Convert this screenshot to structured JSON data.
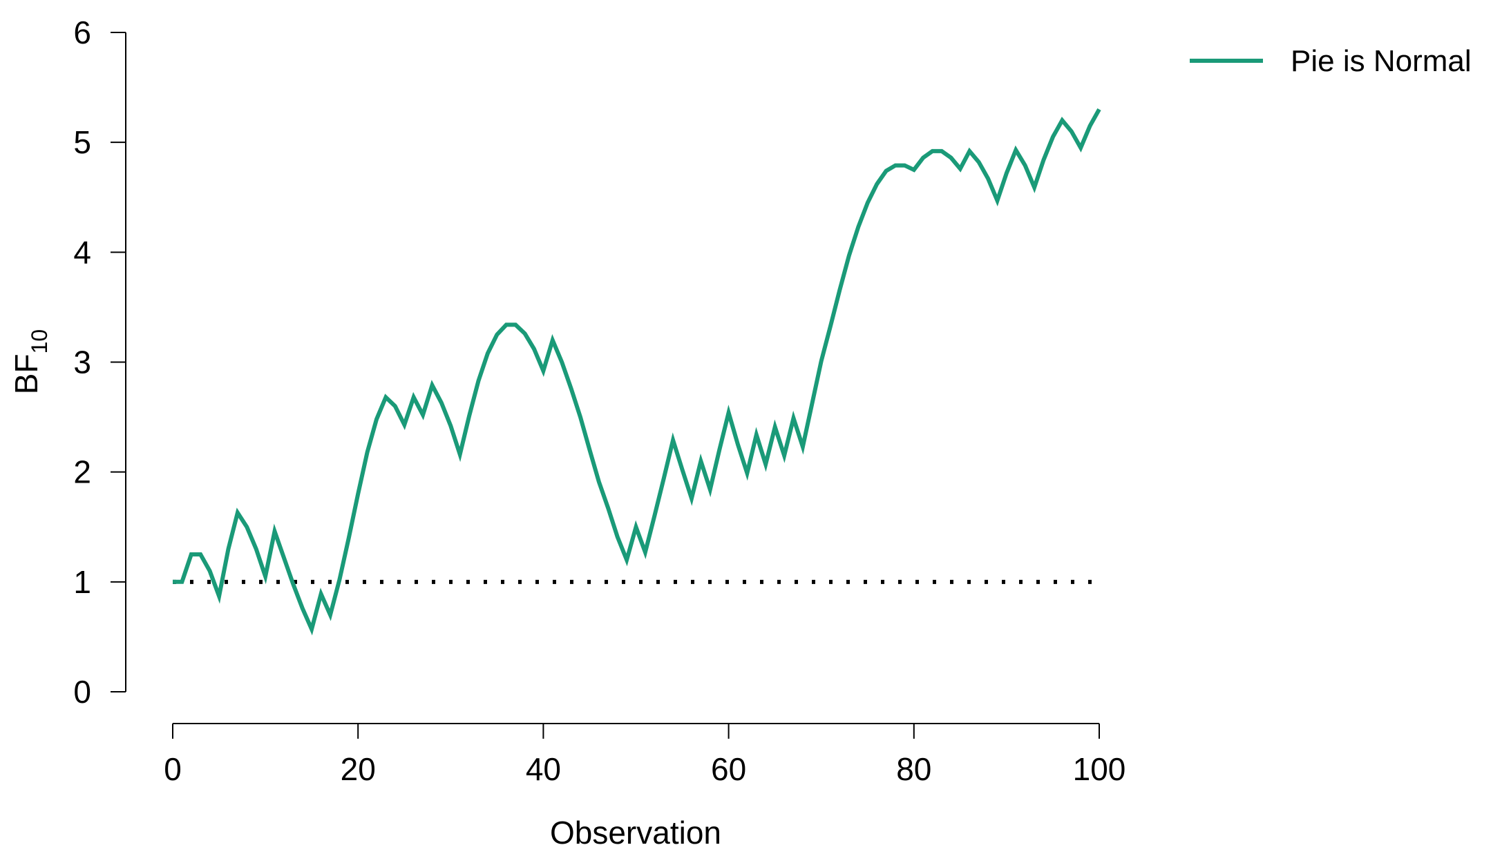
{
  "chart_data": {
    "type": "line",
    "xlabel": "Observation",
    "ylabel": "BF",
    "ylabel_subscript": "10",
    "xlim": [
      0,
      100
    ],
    "ylim": [
      0,
      6
    ],
    "x_ticks": [
      0,
      20,
      40,
      60,
      80,
      100
    ],
    "y_ticks": [
      0,
      1,
      2,
      3,
      4,
      5,
      6
    ],
    "grid": false,
    "legend_position": "top-right",
    "reference_line": {
      "y": 1,
      "style": "dotted",
      "color": "#000000"
    },
    "series": [
      {
        "name": "Pie is Normal",
        "color": "#1a9a78",
        "x": [
          0,
          1,
          2,
          3,
          4,
          5,
          6,
          7,
          8,
          9,
          10,
          11,
          12,
          13,
          14,
          15,
          16,
          17,
          18,
          19,
          20,
          21,
          22,
          23,
          24,
          25,
          26,
          27,
          28,
          29,
          30,
          31,
          32,
          33,
          34,
          35,
          36,
          37,
          38,
          39,
          40,
          41,
          42,
          43,
          44,
          45,
          46,
          47,
          48,
          49,
          50,
          51,
          52,
          53,
          54,
          55,
          56,
          57,
          58,
          59,
          60,
          61,
          62,
          63,
          64,
          65,
          66,
          67,
          68,
          69,
          70,
          71,
          72,
          73,
          74,
          75,
          76,
          77,
          78,
          79,
          80,
          81,
          82,
          83,
          84,
          85,
          86,
          87,
          88,
          89,
          90,
          91,
          92,
          93,
          94,
          95,
          96,
          97,
          98,
          99,
          100
        ],
        "values": [
          1.0,
          1.0,
          1.25,
          1.25,
          1.1,
          0.87,
          1.3,
          1.63,
          1.5,
          1.3,
          1.05,
          1.46,
          1.22,
          0.98,
          0.76,
          0.57,
          0.89,
          0.7,
          1.02,
          1.4,
          1.8,
          2.18,
          2.48,
          2.68,
          2.6,
          2.43,
          2.68,
          2.52,
          2.79,
          2.63,
          2.42,
          2.16,
          2.51,
          2.83,
          3.08,
          3.25,
          3.34,
          3.34,
          3.26,
          3.12,
          2.92,
          3.2,
          3.0,
          2.76,
          2.5,
          2.2,
          1.91,
          1.67,
          1.41,
          1.2,
          1.5,
          1.27,
          1.6,
          1.94,
          2.29,
          2.02,
          1.76,
          2.1,
          1.84,
          2.2,
          2.54,
          2.25,
          1.99,
          2.34,
          2.07,
          2.41,
          2.15,
          2.49,
          2.23,
          2.62,
          3.01,
          3.33,
          3.66,
          3.97,
          4.23,
          4.45,
          4.62,
          4.74,
          4.79,
          4.79,
          4.75,
          4.86,
          4.92,
          4.92,
          4.86,
          4.76,
          4.92,
          4.82,
          4.67,
          4.47,
          4.72,
          4.93,
          4.79,
          4.59,
          4.84,
          5.05,
          5.2,
          5.1,
          4.95,
          5.15,
          5.3
        ]
      }
    ]
  }
}
